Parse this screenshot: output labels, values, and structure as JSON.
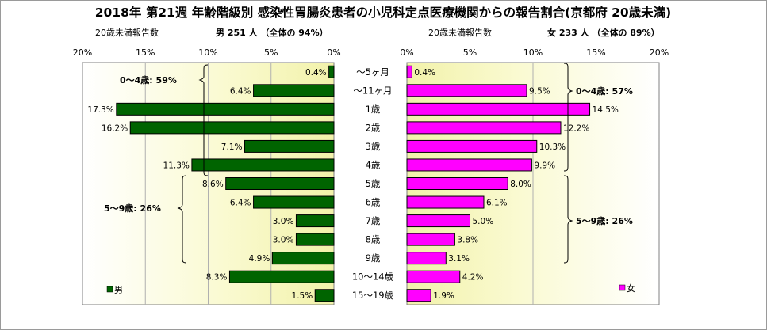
{
  "title": "2018年 第21週 年齢階級別 感染性胃腸炎患者の小児科定点医療機関からの報告割合(京都府 20歳未満)",
  "male": {
    "header_left": "20歳未満報告数",
    "header_right": "男 251 人 （全体の 94%）",
    "legend": "男",
    "color": "#006400",
    "axis_ticks": [
      "20%",
      "15%",
      "10%",
      "5%",
      "0%"
    ],
    "group_0_4": "0～4歳: 59%",
    "group_5_9": "5～9歳: 26%"
  },
  "female": {
    "header_left": "20歳未満報告数",
    "header_right": "女 233 人 （全体の 89%）",
    "legend": "女",
    "color": "#ff00ff",
    "axis_ticks": [
      "0%",
      "5%",
      "10%",
      "15%",
      "20%"
    ],
    "group_0_4": "0～4歳: 57%",
    "group_5_9": "5～9歳: 26%"
  },
  "chart_data": {
    "type": "bar",
    "orientation": "horizontal",
    "layout": "population-pyramid",
    "categories": [
      "～5ヶ月",
      "～11ヶ月",
      "1歳",
      "2歳",
      "3歳",
      "4歳",
      "5歳",
      "6歳",
      "7歳",
      "8歳",
      "9歳",
      "10～14歳",
      "15～19歳"
    ],
    "series": [
      {
        "name": "男",
        "values": [
          0.4,
          6.4,
          17.3,
          16.2,
          7.1,
          11.3,
          8.6,
          6.4,
          3.0,
          3.0,
          4.9,
          8.3,
          1.5
        ],
        "labels": [
          "0.4%",
          "6.4%",
          "17.3%",
          "16.2%",
          "7.1%",
          "11.3%",
          "8.6%",
          "6.4%",
          "3.0%",
          "3.0%",
          "4.9%",
          "8.3%",
          "1.5%"
        ]
      },
      {
        "name": "女",
        "values": [
          0.4,
          9.5,
          14.5,
          12.2,
          10.3,
          9.9,
          8.0,
          6.1,
          5.0,
          3.8,
          3.1,
          4.2,
          1.9
        ],
        "labels": [
          "0.4%",
          "9.5%",
          "14.5%",
          "12.2%",
          "10.3%",
          "9.9%",
          "8.0%",
          "6.1%",
          "5.0%",
          "3.8%",
          "3.1%",
          "4.2%",
          "1.9%"
        ]
      }
    ],
    "xlim": [
      0,
      20
    ],
    "grid": true,
    "legend_position": "bottom-left / bottom-right"
  }
}
